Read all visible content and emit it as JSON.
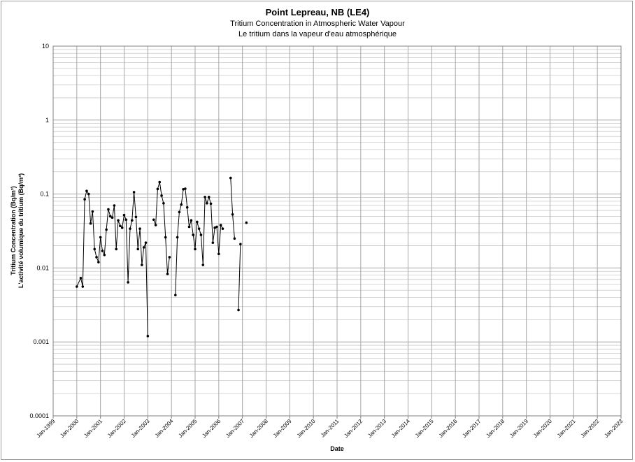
{
  "chart_data": {
    "type": "line",
    "title": "Point Lepreau, NB (LE4)",
    "subtitle_en": "Tritium Concentration in Atmospheric Water Vapour",
    "subtitle_fr": "Le tritium dans la vapeur d'eau atmosphérique",
    "xlabel": "Date",
    "ylabel_en": "Tritium Concentration (Bq/m³)",
    "ylabel_fr": "L'activité volumique du tritium (Bq/m³)",
    "y_scale": "log",
    "ylim": [
      0.0001,
      10
    ],
    "y_ticks": [
      "10",
      "1",
      "0.1",
      "0.01",
      "0.001",
      "0.0001"
    ],
    "x_ticks": [
      "Jan-1999",
      "Jan-2000",
      "Jan-2001",
      "Jan-2002",
      "Jan-2003",
      "Jan-2004",
      "Jan-2005",
      "Jan-2006",
      "Jan-2007",
      "Jan-2008",
      "Jan-2009",
      "Jan-2010",
      "Jan-2011",
      "Jan-2012",
      "Jan-2013",
      "Jan-2014",
      "Jan-2015",
      "Jan-2016",
      "Jan-2017",
      "Jan-2018",
      "Jan-2019",
      "Jan-2020",
      "Jan-2021",
      "Jan-2022",
      "Jan-2023"
    ],
    "grid": true,
    "line_color": "#000000",
    "grid_color": "#a6a6a6",
    "series": [
      {
        "segments": [
          [
            [
              "2000-01-01",
              0.0056
            ],
            [
              "2000-03-01",
              0.0073
            ],
            [
              "2000-04-01",
              0.0056
            ],
            [
              "2000-05-01",
              0.085
            ],
            [
              "2000-06-01",
              0.11
            ],
            [
              "2000-07-01",
              0.1
            ],
            [
              "2000-08-01",
              0.04
            ],
            [
              "2000-09-01",
              0.058
            ],
            [
              "2000-10-01",
              0.018
            ],
            [
              "2000-11-01",
              0.014
            ],
            [
              "2000-12-01",
              0.012
            ],
            [
              "2001-01-01",
              0.026
            ],
            [
              "2001-02-01",
              0.017
            ],
            [
              "2001-03-01",
              0.015
            ],
            [
              "2001-04-01",
              0.033
            ],
            [
              "2001-05-01",
              0.062
            ],
            [
              "2001-06-01",
              0.05
            ],
            [
              "2001-07-01",
              0.048
            ],
            [
              "2001-08-01",
              0.07
            ],
            [
              "2001-09-01",
              0.018
            ],
            [
              "2001-10-01",
              0.044
            ],
            [
              "2001-11-01",
              0.037
            ],
            [
              "2001-12-01",
              0.035
            ],
            [
              "2002-01-01",
              0.052
            ],
            [
              "2002-02-01",
              0.045
            ],
            [
              "2002-03-01",
              0.0064
            ],
            [
              "2002-04-01",
              0.034
            ],
            [
              "2002-05-01",
              0.044
            ],
            [
              "2002-06-01",
              0.106
            ],
            [
              "2002-07-01",
              0.049
            ],
            [
              "2002-08-01",
              0.018
            ],
            [
              "2002-09-01",
              0.034
            ],
            [
              "2002-10-01",
              0.011
            ],
            [
              "2002-11-01",
              0.019
            ],
            [
              "2002-12-01",
              0.022
            ],
            [
              "2003-01-01",
              0.0012
            ]
          ],
          [
            [
              "2003-04-01",
              0.045
            ],
            [
              "2003-05-01",
              0.038
            ],
            [
              "2003-06-01",
              0.117
            ],
            [
              "2003-07-01",
              0.145
            ],
            [
              "2003-08-01",
              0.095
            ],
            [
              "2003-09-01",
              0.075
            ],
            [
              "2003-10-01",
              0.026
            ],
            [
              "2003-11-01",
              0.0083
            ],
            [
              "2003-12-01",
              0.014
            ]
          ],
          [
            [
              "2004-03-01",
              0.0043
            ],
            [
              "2004-04-01",
              0.026
            ],
            [
              "2004-05-01",
              0.057
            ],
            [
              "2004-06-01",
              0.072
            ],
            [
              "2004-07-01",
              0.116
            ],
            [
              "2004-08-01",
              0.118
            ],
            [
              "2004-09-01",
              0.066
            ],
            [
              "2004-10-01",
              0.036
            ],
            [
              "2004-11-01",
              0.044
            ],
            [
              "2004-12-01",
              0.028
            ],
            [
              "2005-01-01",
              0.018
            ],
            [
              "2005-02-01",
              0.042
            ],
            [
              "2005-03-01",
              0.034
            ],
            [
              "2005-04-01",
              0.028
            ],
            [
              "2005-05-01",
              0.011
            ],
            [
              "2005-06-01",
              0.091
            ],
            [
              "2005-07-01",
              0.075
            ],
            [
              "2005-08-01",
              0.091
            ],
            [
              "2005-09-01",
              0.074
            ],
            [
              "2005-10-01",
              0.022
            ],
            [
              "2005-11-01",
              0.035
            ],
            [
              "2005-12-01",
              0.036
            ],
            [
              "2006-01-01",
              0.0155
            ],
            [
              "2006-02-01",
              0.038
            ],
            [
              "2006-03-01",
              0.034
            ]
          ],
          [
            [
              "2006-07-01",
              0.165
            ],
            [
              "2006-08-01",
              0.053
            ],
            [
              "2006-09-01",
              0.025
            ]
          ],
          [
            [
              "2006-11-01",
              0.0027
            ],
            [
              "2006-12-01",
              0.021
            ]
          ],
          [
            [
              "2007-03-01",
              0.041
            ]
          ]
        ]
      }
    ]
  }
}
